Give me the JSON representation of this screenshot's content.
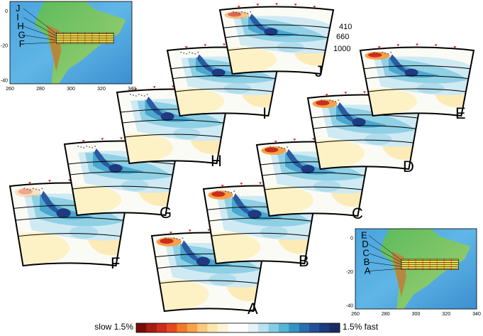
{
  "panels": [
    "A",
    "B",
    "C",
    "D",
    "E",
    "F",
    "G",
    "H",
    "I",
    "J"
  ],
  "depth_labels": [
    "410",
    "660",
    "1000"
  ],
  "map_top_left": {
    "profile_labels": [
      "J",
      "I",
      "H",
      "G",
      "F"
    ],
    "x_ticks": [
      "260",
      "280",
      "300",
      "320",
      "340"
    ],
    "y_ticks": [
      "0",
      "-20",
      "-40"
    ]
  },
  "map_bottom_right": {
    "profile_labels": [
      "E",
      "D",
      "C",
      "B",
      "A"
    ],
    "x_ticks": [
      "260",
      "280",
      "300",
      "320",
      "340"
    ],
    "y_ticks": [
      "0",
      "-20",
      "-40"
    ]
  },
  "colorbar": {
    "left_label": "slow 1.5%",
    "right_label": "1.5% fast",
    "colors": [
      "#7a0a0a",
      "#a51c12",
      "#cc2c1a",
      "#e8481e",
      "#f07a2a",
      "#f7a14a",
      "#fbc97d",
      "#fde6ae",
      "#fff4d6",
      "#ffffff",
      "#ffffff",
      "#e3f3f7",
      "#b9e2ee",
      "#86cde3",
      "#56b4d4",
      "#3593c2",
      "#2a6fad",
      "#24509a",
      "#1d3a7f",
      "#1a2a63"
    ]
  }
}
